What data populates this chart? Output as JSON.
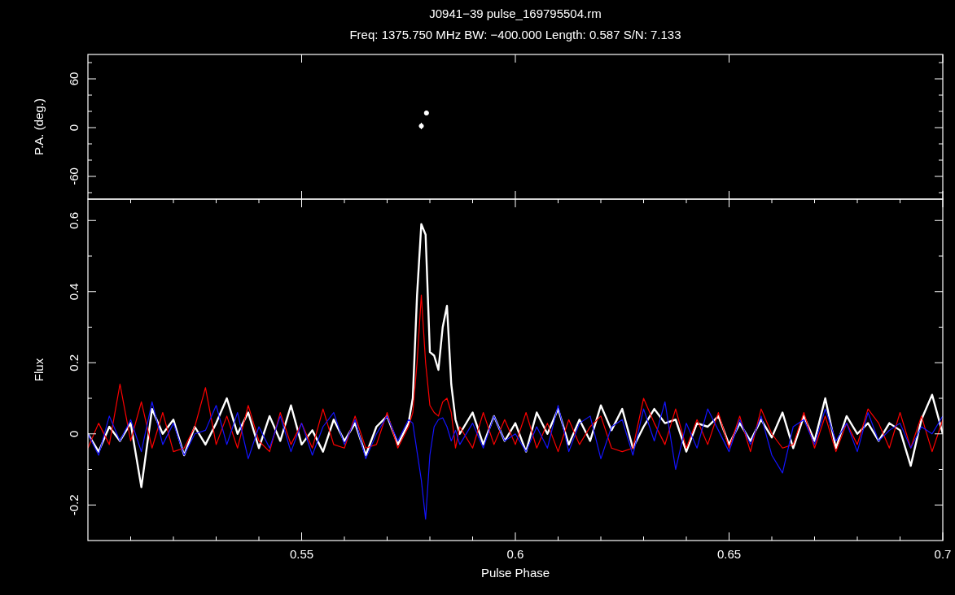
{
  "chart_data": [
    {
      "type": "scatter",
      "title": "J0941−39 pulse_169795504.rm",
      "subtitle": "Freq: 1375.750 MHz BW: −400.000 Length: 0.587 S/N: 7.133",
      "ylabel": "P.A. (deg.)",
      "x": [
        0.578,
        0.5792
      ],
      "values": [
        2,
        18
      ],
      "errors": [
        4,
        3
      ],
      "color": "#ffffff",
      "marker": "circle",
      "xlim": [
        0.5,
        0.7
      ],
      "xticks": [
        0.55,
        0.6,
        0.65,
        0.7
      ],
      "ylim": [
        -88,
        90
      ],
      "yticks": [
        {
          "value": -80,
          "label": null
        },
        -60,
        {
          "value": -40,
          "label": null
        },
        {
          "value": -20,
          "label": null
        },
        0,
        {
          "value": 20,
          "label": null
        },
        {
          "value": 40,
          "label": null
        },
        60,
        {
          "value": 80,
          "label": null
        }
      ],
      "tick_labels": "y"
    },
    {
      "type": "line",
      "xlabel": "Pulse Phase",
      "ylabel": "Flux",
      "x": [
        0.5,
        0.5025,
        0.505,
        0.5075,
        0.51,
        0.5125,
        0.515,
        0.5175,
        0.52,
        0.5225,
        0.525,
        0.5275,
        0.53,
        0.5325,
        0.535,
        0.5375,
        0.54,
        0.5425,
        0.545,
        0.5475,
        0.55,
        0.5525,
        0.555,
        0.5575,
        0.56,
        0.5625,
        0.565,
        0.5675,
        0.57,
        0.5725,
        0.575,
        0.576,
        0.577,
        0.578,
        0.579,
        0.58,
        0.581,
        0.582,
        0.583,
        0.584,
        0.585,
        0.586,
        0.587,
        0.59,
        0.5925,
        0.595,
        0.5975,
        0.6,
        0.6025,
        0.605,
        0.6075,
        0.61,
        0.6125,
        0.615,
        0.6175,
        0.62,
        0.6225,
        0.625,
        0.6275,
        0.63,
        0.6325,
        0.635,
        0.6375,
        0.64,
        0.6425,
        0.645,
        0.6475,
        0.65,
        0.6525,
        0.655,
        0.6575,
        0.66,
        0.6625,
        0.665,
        0.6675,
        0.67,
        0.6725,
        0.675,
        0.6775,
        0.68,
        0.6825,
        0.685,
        0.6875,
        0.69,
        0.6925,
        0.695,
        0.6975,
        0.7
      ],
      "series": [
        {
          "color": "#ffffff",
          "values": [
            0,
            -0.05,
            0.02,
            -0.02,
            0.03,
            -0.15,
            0.07,
            0,
            0.04,
            -0.06,
            0.02,
            -0.03,
            0.03,
            0.1,
            0,
            0.06,
            -0.04,
            0.05,
            -0.02,
            0.08,
            -0.03,
            0.01,
            -0.05,
            0.04,
            -0.02,
            0.03,
            -0.06,
            0.02,
            0.05,
            -0.03,
            0.03,
            0.1,
            0.39,
            0.59,
            0.56,
            0.23,
            0.22,
            0.18,
            0.3,
            0.36,
            0.14,
            0.04,
            0,
            0.06,
            -0.03,
            0.05,
            -0.02,
            0.03,
            -0.05,
            0.06,
            0,
            0.07,
            -0.03,
            0.04,
            -0.02,
            0.08,
            0.01,
            0.07,
            -0.04,
            0.02,
            0.07,
            0.03,
            0.04,
            -0.05,
            0.03,
            0.02,
            0.05,
            -0.03,
            0.03,
            -0.02,
            0.04,
            -0.01,
            0.06,
            -0.04,
            0.05,
            -0.02,
            0.1,
            -0.04,
            0.05,
            0,
            0.03,
            -0.02,
            0.03,
            0.01,
            -0.09,
            0.04,
            0.11,
            0
          ]
        },
        {
          "color": "#ff0000",
          "values": [
            -0.04,
            0.03,
            -0.03,
            0.14,
            -0.02,
            0.09,
            -0.04,
            0.06,
            -0.05,
            -0.04,
            0.02,
            0.13,
            -0.03,
            0.05,
            -0.04,
            0.08,
            -0.02,
            -0.05,
            0.06,
            -0.03,
            0.03,
            -0.04,
            0.07,
            -0.03,
            -0.04,
            0.05,
            -0.04,
            -0.03,
            0.06,
            -0.04,
            0.02,
            0.06,
            0.2,
            0.39,
            0.2,
            0.08,
            0.06,
            0.05,
            0.09,
            0.1,
            0.06,
            -0.04,
            0.02,
            -0.04,
            0.06,
            -0.03,
            0.04,
            -0.03,
            0.06,
            -0.04,
            0.03,
            -0.05,
            0.04,
            -0.03,
            0.02,
            0.05,
            -0.04,
            -0.05,
            -0.04,
            0.1,
            0.03,
            -0.03,
            0.07,
            -0.04,
            0.04,
            -0.03,
            0.06,
            -0.04,
            0.05,
            -0.05,
            0.07,
            0,
            -0.04,
            -0.03,
            0.06,
            -0.04,
            0.05,
            -0.05,
            0.03,
            -0.03,
            0.07,
            0.03,
            -0.04,
            0.06,
            -0.04,
            0.05,
            -0.05,
            0.04
          ]
        },
        {
          "color": "#1414ff",
          "values": [
            0,
            -0.06,
            0.05,
            -0.02,
            0.04,
            -0.05,
            0.09,
            -0.03,
            0.03,
            -0.06,
            0,
            0.01,
            0.08,
            -0.03,
            0.06,
            -0.07,
            0.02,
            -0.04,
            0.05,
            -0.05,
            0.03,
            -0.06,
            0.02,
            0.06,
            -0.03,
            0.04,
            -0.07,
            0,
            0.05,
            -0.02,
            0.04,
            0.03,
            -0.05,
            -0.13,
            -0.24,
            -0.06,
            0.02,
            0.04,
            0.045,
            0.02,
            -0.02,
            0.01,
            -0.03,
            0.03,
            -0.04,
            0.05,
            -0.02,
            0,
            -0.05,
            0.02,
            -0.04,
            0.08,
            -0.05,
            0.03,
            0.05,
            -0.07,
            0.02,
            0.04,
            -0.06,
            0.07,
            -0.02,
            0.09,
            -0.1,
            0.03,
            -0.04,
            0.07,
            0.01,
            -0.05,
            0.04,
            -0.03,
            0.05,
            -0.06,
            -0.11,
            0.02,
            0.04,
            -0.03,
            0.07,
            -0.02,
            0.03,
            -0.05,
            0.06,
            -0.02,
            0.01,
            0.03,
            -0.04,
            0.02,
            0,
            0.05
          ]
        }
      ],
      "xlim": [
        0.5,
        0.7
      ],
      "xticks": [
        {
          "value": 0.51,
          "label": null
        },
        {
          "value": 0.52,
          "label": null
        },
        {
          "value": 0.53,
          "label": null
        },
        {
          "value": 0.54,
          "label": null
        },
        0.55,
        {
          "value": 0.56,
          "label": null
        },
        {
          "value": 0.57,
          "label": null
        },
        {
          "value": 0.58,
          "label": null
        },
        {
          "value": 0.59,
          "label": null
        },
        0.6,
        {
          "value": 0.61,
          "label": null
        },
        {
          "value": 0.62,
          "label": null
        },
        {
          "value": 0.63,
          "label": null
        },
        {
          "value": 0.64,
          "label": null
        },
        0.65,
        {
          "value": 0.66,
          "label": null
        },
        {
          "value": 0.67,
          "label": null
        },
        {
          "value": 0.68,
          "label": null
        },
        {
          "value": 0.69,
          "label": null
        },
        0.7
      ],
      "ylim": [
        -0.3,
        0.66
      ],
      "yticks": [
        -0.2,
        {
          "value": -0.1,
          "label": null
        },
        0,
        {
          "value": 0.1,
          "label": null
        },
        0.2,
        {
          "value": 0.3,
          "label": null
        },
        0.4,
        {
          "value": 0.5,
          "label": null
        },
        0.6
      ]
    }
  ]
}
